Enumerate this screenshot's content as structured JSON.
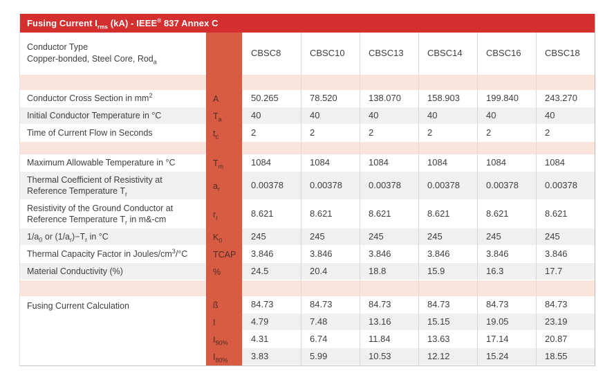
{
  "title": "Fusing Current I_{rms} (kA) - IEEE^{®} 837 Annex C",
  "colors": {
    "title_bar": "#d32f2e",
    "symbol_col": "#d85c44",
    "separator": "#f9e5dc",
    "stripe": "#f0f0f0",
    "text": "#3e3e3e"
  },
  "table": {
    "header": {
      "label_lines": [
        "Conductor Type",
        "Copper-bonded, Steel Core, Rod_{a}"
      ],
      "symbol": "",
      "columns": [
        "CBSC8",
        "CBSC10",
        "CBSC13",
        "CBSC14",
        "CBSC16",
        "CBSC18"
      ]
    },
    "rows": [
      {
        "kind": "separator",
        "height": 22
      },
      {
        "kind": "data",
        "stripe": false,
        "label": "Conductor Cross Section in mm^{2}",
        "symbol": "A",
        "values": [
          "50.265",
          "78.520",
          "138.070",
          "158.903",
          "199.840",
          "243.270"
        ]
      },
      {
        "kind": "data",
        "stripe": true,
        "label": "Initial Conductor Temperature in °C",
        "symbol": "T_{a}",
        "values": [
          "40",
          "40",
          "40",
          "40",
          "40",
          "40"
        ]
      },
      {
        "kind": "data",
        "stripe": false,
        "label": "Time of Current Flow in Seconds",
        "symbol": "t_{c}",
        "values": [
          "2",
          "2",
          "2",
          "2",
          "2",
          "2"
        ]
      },
      {
        "kind": "separator",
        "height": 18
      },
      {
        "kind": "data",
        "stripe": false,
        "label": "Maximum Allowable Temperature in °C",
        "symbol": "T_{m}",
        "values": [
          "1084",
          "1084",
          "1084",
          "1084",
          "1084",
          "1084"
        ]
      },
      {
        "kind": "data",
        "stripe": true,
        "label": "Thermal Coefficient of Resistivity at Reference Temperature T_{r}",
        "symbol": "a_{r}",
        "values": [
          "0.00378",
          "0.00378",
          "0.00378",
          "0.00378",
          "0.00378",
          "0.00378"
        ]
      },
      {
        "kind": "data",
        "stripe": false,
        "label": "Resistivity of the Ground Conductor at Reference Temperature T_{r} in m&-cm",
        "symbol": "r_{r}",
        "values": [
          "8.621",
          "8.621",
          "8.621",
          "8.621",
          "8.621",
          "8.621"
        ]
      },
      {
        "kind": "data",
        "stripe": true,
        "label": "1/a_{0} or (1/a_{r})−T_{r} in °C",
        "symbol": "K_{0}",
        "values": [
          "245",
          "245",
          "245",
          "245",
          "245",
          "245"
        ]
      },
      {
        "kind": "data",
        "stripe": false,
        "label": "Thermal Capacity Factor in Joules/cm^{3}/°C",
        "symbol": "TCAP",
        "values": [
          "3.846",
          "3.846",
          "3.846",
          "3.846",
          "3.846",
          "3.846"
        ]
      },
      {
        "kind": "data",
        "stripe": true,
        "label": "Material Conductivity (%)",
        "symbol": "%",
        "values": [
          "24.5",
          "20.4",
          "18.8",
          "15.9",
          "16.3",
          "17.7"
        ]
      },
      {
        "kind": "separator",
        "height": 23
      },
      {
        "kind": "group",
        "label": "Fusing Current Calculation",
        "rows": [
          {
            "stripe": false,
            "symbol": "ß",
            "values": [
              "84.73",
              "84.73",
              "84.73",
              "84.73",
              "84.73",
              "84.73"
            ]
          },
          {
            "stripe": true,
            "symbol": "I",
            "values": [
              "4.79",
              "7.48",
              "13.16",
              "15.15",
              "19.05",
              "23.19"
            ]
          },
          {
            "stripe": false,
            "symbol": "I_{90%}",
            "values": [
              "4.31",
              "6.74",
              "11.84",
              "13.63",
              "17.14",
              "20.87"
            ]
          },
          {
            "stripe": true,
            "symbol": "I_{80%}",
            "values": [
              "3.83",
              "5.99",
              "10.53",
              "12.12",
              "15.24",
              "18.55"
            ]
          }
        ]
      }
    ]
  }
}
